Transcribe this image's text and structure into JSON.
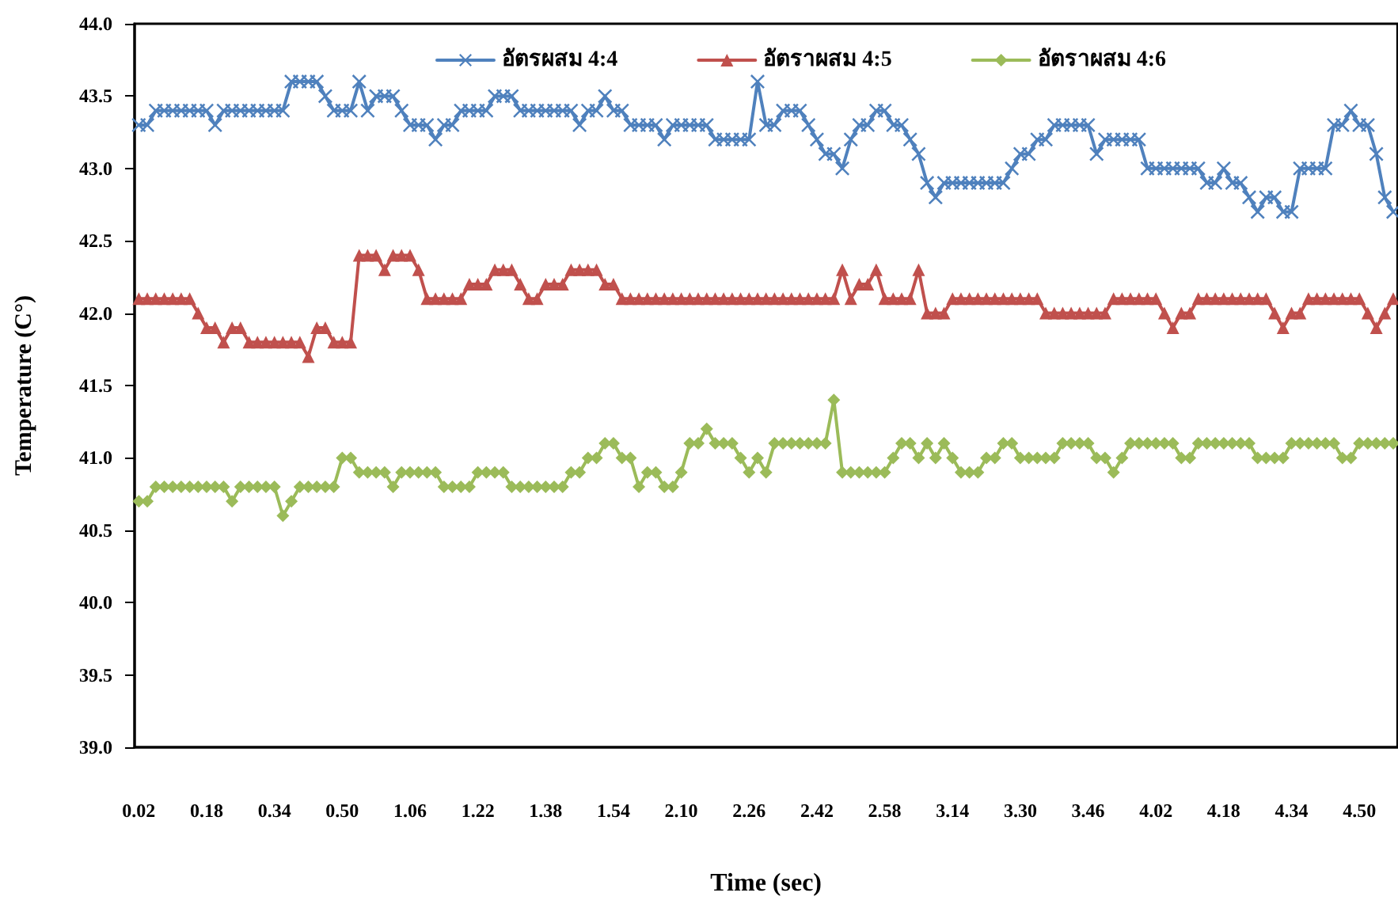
{
  "chart_data": {
    "type": "line",
    "xlabel": "Time (sec)",
    "ylabel": "Temperature (C°)",
    "categories": [
      "0.02",
      null,
      null,
      null,
      null,
      null,
      null,
      null,
      "0.18",
      null,
      null,
      null,
      null,
      null,
      null,
      null,
      "0.34",
      null,
      null,
      null,
      null,
      null,
      null,
      null,
      "0.50",
      null,
      null,
      null,
      null,
      null,
      null,
      null,
      "1.06",
      null,
      null,
      null,
      null,
      null,
      null,
      null,
      "1.22",
      null,
      null,
      null,
      null,
      null,
      null,
      null,
      "1.38",
      null,
      null,
      null,
      null,
      null,
      null,
      null,
      "1.54",
      null,
      null,
      null,
      null,
      null,
      null,
      null,
      "2.10",
      null,
      null,
      null,
      null,
      null,
      null,
      null,
      "2.26",
      null,
      null,
      null,
      null,
      null,
      null,
      null,
      "2.42",
      null,
      null,
      null,
      null,
      null,
      null,
      null,
      "2.58",
      null,
      null,
      null,
      null,
      null,
      null,
      null,
      "3.14",
      null,
      null,
      null,
      null,
      null,
      null,
      null,
      "3.30",
      null,
      null,
      null,
      null,
      null,
      null,
      null,
      "3.46",
      null,
      null,
      null,
      null,
      null,
      null,
      null,
      "4.02",
      null,
      null,
      null,
      null,
      null,
      null,
      null,
      "4.18",
      null,
      null,
      null,
      null,
      null,
      null,
      null,
      "4.34",
      null,
      null,
      null,
      null,
      null,
      null,
      null,
      "4.50",
      null,
      null,
      null,
      null
    ],
    "series": [
      {
        "name": "อัตรผสม 4:4",
        "color": "#4f81bd",
        "marker": "cross",
        "values": [
          43.3,
          43.3,
          43.4,
          43.4,
          43.4,
          43.4,
          43.4,
          43.4,
          43.4,
          43.3,
          43.4,
          43.4,
          43.4,
          43.4,
          43.4,
          43.4,
          43.4,
          43.4,
          43.6,
          43.6,
          43.6,
          43.6,
          43.5,
          43.4,
          43.4,
          43.4,
          43.6,
          43.4,
          43.5,
          43.5,
          43.5,
          43.4,
          43.3,
          43.3,
          43.3,
          43.2,
          43.3,
          43.3,
          43.4,
          43.4,
          43.4,
          43.4,
          43.5,
          43.5,
          43.5,
          43.4,
          43.4,
          43.4,
          43.4,
          43.4,
          43.4,
          43.4,
          43.3,
          43.4,
          43.4,
          43.5,
          43.4,
          43.4,
          43.3,
          43.3,
          43.3,
          43.3,
          43.2,
          43.3,
          43.3,
          43.3,
          43.3,
          43.3,
          43.2,
          43.2,
          43.2,
          43.2,
          43.2,
          43.6,
          43.3,
          43.3,
          43.4,
          43.4,
          43.4,
          43.3,
          43.2,
          43.1,
          43.1,
          43.0,
          43.2,
          43.3,
          43.3,
          43.4,
          43.4,
          43.3,
          43.3,
          43.2,
          43.1,
          42.9,
          42.8,
          42.9,
          42.9,
          42.9,
          42.9,
          42.9,
          42.9,
          42.9,
          42.9,
          43.0,
          43.1,
          43.1,
          43.2,
          43.2,
          43.3,
          43.3,
          43.3,
          43.3,
          43.3,
          43.1,
          43.2,
          43.2,
          43.2,
          43.2,
          43.2,
          43.0,
          43.0,
          43.0,
          43.0,
          43.0,
          43.0,
          43.0,
          42.9,
          42.9,
          43.0,
          42.9,
          42.9,
          42.8,
          42.7,
          42.8,
          42.8,
          42.7,
          42.7,
          43.0,
          43.0,
          43.0,
          43.0,
          43.3,
          43.3,
          43.4,
          43.3,
          43.3,
          43.1,
          42.8,
          42.7
        ]
      },
      {
        "name": "อัตราผสม 4:5",
        "color": "#c0504d",
        "marker": "triangle",
        "values": [
          42.1,
          42.1,
          42.1,
          42.1,
          42.1,
          42.1,
          42.1,
          42.0,
          41.9,
          41.9,
          41.8,
          41.9,
          41.9,
          41.8,
          41.8,
          41.8,
          41.8,
          41.8,
          41.8,
          41.8,
          41.7,
          41.9,
          41.9,
          41.8,
          41.8,
          41.8,
          42.4,
          42.4,
          42.4,
          42.3,
          42.4,
          42.4,
          42.4,
          42.3,
          42.1,
          42.1,
          42.1,
          42.1,
          42.1,
          42.2,
          42.2,
          42.2,
          42.3,
          42.3,
          42.3,
          42.2,
          42.1,
          42.1,
          42.2,
          42.2,
          42.2,
          42.3,
          42.3,
          42.3,
          42.3,
          42.2,
          42.2,
          42.1,
          42.1,
          42.1,
          42.1,
          42.1,
          42.1,
          42.1,
          42.1,
          42.1,
          42.1,
          42.1,
          42.1,
          42.1,
          42.1,
          42.1,
          42.1,
          42.1,
          42.1,
          42.1,
          42.1,
          42.1,
          42.1,
          42.1,
          42.1,
          42.1,
          42.1,
          42.3,
          42.1,
          42.2,
          42.2,
          42.3,
          42.1,
          42.1,
          42.1,
          42.1,
          42.3,
          42.0,
          42.0,
          42.0,
          42.1,
          42.1,
          42.1,
          42.1,
          42.1,
          42.1,
          42.1,
          42.1,
          42.1,
          42.1,
          42.1,
          42.0,
          42.0,
          42.0,
          42.0,
          42.0,
          42.0,
          42.0,
          42.0,
          42.1,
          42.1,
          42.1,
          42.1,
          42.1,
          42.1,
          42.0,
          41.9,
          42.0,
          42.0,
          42.1,
          42.1,
          42.1,
          42.1,
          42.1,
          42.1,
          42.1,
          42.1,
          42.1,
          42.0,
          41.9,
          42.0,
          42.0,
          42.1,
          42.1,
          42.1,
          42.1,
          42.1,
          42.1,
          42.1,
          42.0,
          41.9,
          42.0,
          42.1
        ]
      },
      {
        "name": "อัตราผสม 4:6",
        "color": "#9bbb59",
        "marker": "diamond",
        "values": [
          40.7,
          40.7,
          40.8,
          40.8,
          40.8,
          40.8,
          40.8,
          40.8,
          40.8,
          40.8,
          40.8,
          40.7,
          40.8,
          40.8,
          40.8,
          40.8,
          40.8,
          40.6,
          40.7,
          40.8,
          40.8,
          40.8,
          40.8,
          40.8,
          41.0,
          41.0,
          40.9,
          40.9,
          40.9,
          40.9,
          40.8,
          40.9,
          40.9,
          40.9,
          40.9,
          40.9,
          40.8,
          40.8,
          40.8,
          40.8,
          40.9,
          40.9,
          40.9,
          40.9,
          40.8,
          40.8,
          40.8,
          40.8,
          40.8,
          40.8,
          40.8,
          40.9,
          40.9,
          41.0,
          41.0,
          41.1,
          41.1,
          41.0,
          41.0,
          40.8,
          40.9,
          40.9,
          40.8,
          40.8,
          40.9,
          41.1,
          41.1,
          41.2,
          41.1,
          41.1,
          41.1,
          41.0,
          40.9,
          41.0,
          40.9,
          41.1,
          41.1,
          41.1,
          41.1,
          41.1,
          41.1,
          41.1,
          41.4,
          40.9,
          40.9,
          40.9,
          40.9,
          40.9,
          40.9,
          41.0,
          41.1,
          41.1,
          41.0,
          41.1,
          41.0,
          41.1,
          41.0,
          40.9,
          40.9,
          40.9,
          41.0,
          41.0,
          41.1,
          41.1,
          41.0,
          41.0,
          41.0,
          41.0,
          41.0,
          41.1,
          41.1,
          41.1,
          41.1,
          41.0,
          41.0,
          40.9,
          41.0,
          41.1,
          41.1,
          41.1,
          41.1,
          41.1,
          41.1,
          41.0,
          41.0,
          41.1,
          41.1,
          41.1,
          41.1,
          41.1,
          41.1,
          41.1,
          41.0,
          41.0,
          41.0,
          41.0,
          41.1,
          41.1,
          41.1,
          41.1,
          41.1,
          41.1,
          41.0,
          41.0,
          41.1,
          41.1,
          41.1,
          41.1,
          41.1
        ]
      }
    ],
    "ylim": [
      39,
      44
    ],
    "yticks": [
      {
        "value": 39,
        "label": "39.0"
      },
      {
        "value": 39.5,
        "label": "39.5"
      },
      {
        "value": 40,
        "label": "40.0"
      },
      {
        "value": 40.5,
        "label": "40.5"
      },
      {
        "value": 41,
        "label": "41.0"
      },
      {
        "value": 41.5,
        "label": "41.5"
      },
      {
        "value": 42,
        "label": "42.0"
      },
      {
        "value": 42.5,
        "label": "42.5"
      },
      {
        "value": 43,
        "label": "43.0"
      },
      {
        "value": 43.5,
        "label": "43.5"
      },
      {
        "value": 44,
        "label": "44.0"
      }
    ],
    "grid": false,
    "legend": "top",
    "line_style": "solid"
  }
}
